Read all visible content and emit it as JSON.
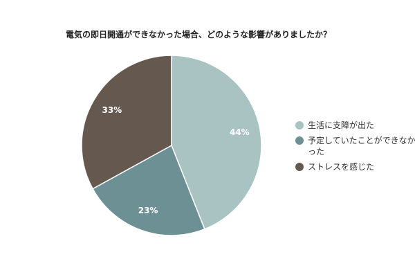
{
  "chart_data": {
    "type": "pie",
    "title": "電気の即日開通ができなかった場合、どのような影響がありましたか？",
    "categories": [
      "生活に支障が出た",
      "予定していたことができなかった",
      "ストレスを感じた"
    ],
    "values": [
      44,
      23,
      33
    ],
    "labels": [
      "44%",
      "23%",
      "33%"
    ],
    "colors": [
      "#a9c2c2",
      "#6d9094",
      "#65594f"
    ],
    "legend_position": "right"
  }
}
